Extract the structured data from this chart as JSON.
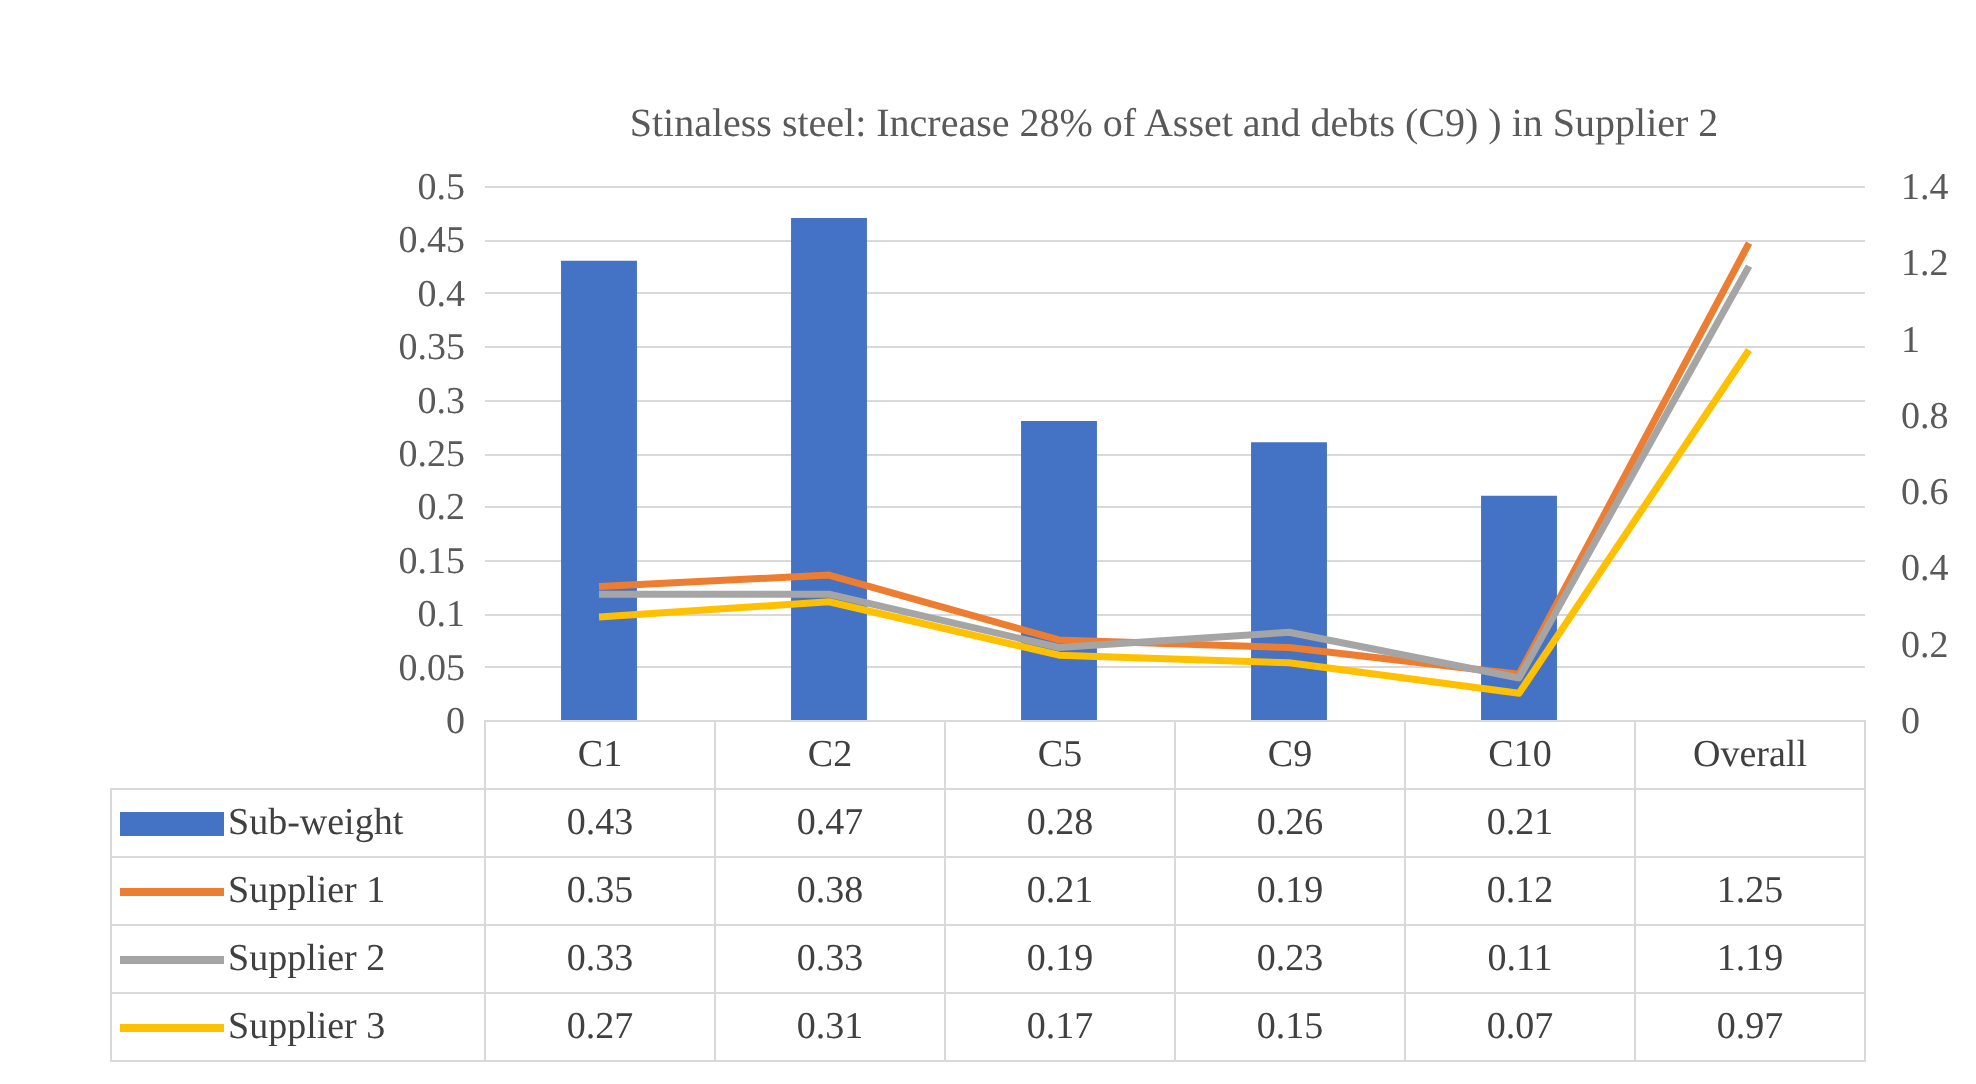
{
  "chart_data": {
    "type": "bar",
    "title": "Stinaless steel: Increase 28% of Asset and debts (C9) ) in Supplier 2",
    "categories": [
      "C1",
      "C2",
      "C5",
      "C9",
      "C10",
      "Overall"
    ],
    "series": [
      {
        "name": "Sub-weight",
        "color": "#4472c4",
        "values": [
          0.43,
          0.47,
          0.28,
          0.26,
          0.21,
          null
        ]
      },
      {
        "name": "Supplier 1",
        "type": "line",
        "axis": "y2",
        "color": "#ed7d31",
        "values": [
          0.35,
          0.38,
          0.21,
          0.19,
          0.12,
          1.25
        ]
      },
      {
        "name": "Supplier 2",
        "type": "line",
        "axis": "y2",
        "color": "#a5a5a5",
        "values": [
          0.33,
          0.33,
          0.19,
          0.23,
          0.11,
          1.19
        ]
      },
      {
        "name": "Supplier 3",
        "type": "line",
        "axis": "y2",
        "color": "#ffc000",
        "values": [
          0.27,
          0.31,
          0.17,
          0.15,
          0.07,
          0.97
        ]
      }
    ],
    "ylim": [
      0,
      0.5
    ],
    "yticks": [
      0,
      0.05,
      0.1,
      0.15,
      0.2,
      0.25,
      0.3,
      0.35,
      0.4,
      0.45,
      0.5
    ],
    "y2lim": [
      0,
      1.4
    ],
    "y2ticks": [
      0,
      0.2,
      0.4,
      0.6,
      0.8,
      1,
      1.2,
      1.4
    ],
    "grid": "y",
    "legend": "bottom",
    "data_labels": true
  }
}
